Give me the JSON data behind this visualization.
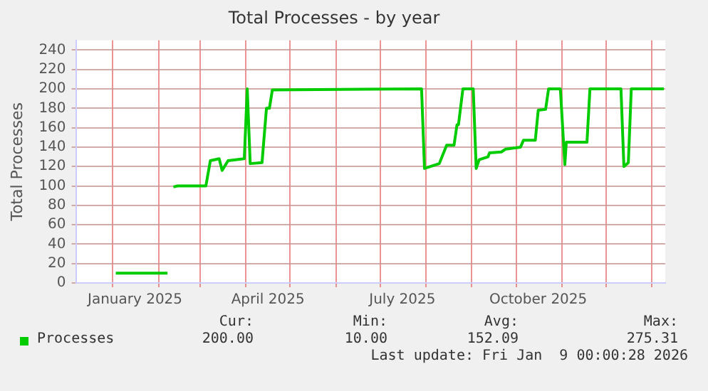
{
  "chart_data": {
    "type": "line",
    "title": "Total Processes - by year",
    "ylabel": "Total Processes",
    "xlim": [
      "2024-12-07",
      "2026-01-10"
    ],
    "xticks": [
      {
        "value": "2025-01-01",
        "label": null
      },
      {
        "value": "2025-01-16",
        "label": "January 2025"
      },
      {
        "value": "2025-02-01",
        "label": null
      },
      {
        "value": "2025-03-01",
        "label": null
      },
      {
        "value": "2025-04-01",
        "label": null
      },
      {
        "value": "2025-04-16",
        "label": "April 2025"
      },
      {
        "value": "2025-05-01",
        "label": null
      },
      {
        "value": "2025-06-01",
        "label": null
      },
      {
        "value": "2025-07-01",
        "label": null
      },
      {
        "value": "2025-07-16",
        "label": "July 2025"
      },
      {
        "value": "2025-08-01",
        "label": null
      },
      {
        "value": "2025-09-01",
        "label": null
      },
      {
        "value": "2025-10-01",
        "label": null
      },
      {
        "value": "2025-10-16",
        "label": "October 2025"
      },
      {
        "value": "2025-11-01",
        "label": null
      },
      {
        "value": "2025-12-01",
        "label": null
      },
      {
        "value": "2026-01-01",
        "label": null
      }
    ],
    "ylim": [
      0,
      250
    ],
    "yticks": [
      0,
      20,
      40,
      60,
      80,
      100,
      120,
      140,
      160,
      180,
      200,
      220,
      240
    ],
    "grid": true,
    "legend": "bottom left",
    "marker": "none",
    "line_style": "solid",
    "series": [
      {
        "name": "Processes",
        "color": "#00cc00",
        "x": [
          "2025-01-03",
          "2025-02-07",
          "2025-02-09",
          "2025-02-11",
          "2025-02-14",
          "2025-03-05",
          "2025-03-08",
          "2025-03-14",
          "2025-03-16",
          "2025-03-20",
          "2025-03-25",
          "2025-03-31",
          "2025-04-02",
          "2025-04-04",
          "2025-04-12",
          "2025-04-15",
          "2025-04-17",
          "2025-04-19",
          "2025-07-29",
          "2025-07-31",
          "2025-08-10",
          "2025-08-15",
          "2025-08-20",
          "2025-08-22",
          "2025-08-23",
          "2025-08-26",
          "2025-09-02",
          "2025-09-04",
          "2025-09-06",
          "2025-09-12",
          "2025-09-13",
          "2025-09-21",
          "2025-09-24",
          "2025-10-04",
          "2025-10-06",
          "2025-10-14",
          "2025-10-16",
          "2025-10-21",
          "2025-10-23",
          "2025-10-31",
          "2025-11-03",
          "2025-11-04",
          "2025-11-18",
          "2025-11-20",
          "2025-12-11",
          "2025-12-13",
          "2025-12-16",
          "2025-12-18",
          "2026-01-09"
        ],
        "values": [
          10,
          10,
          null,
          99,
          100,
          100,
          126,
          128,
          116,
          126,
          127,
          128,
          200,
          123,
          124,
          180,
          180,
          199,
          200,
          118,
          123,
          142,
          142,
          163,
          163,
          200,
          200,
          118,
          127,
          130,
          134,
          135,
          138,
          140,
          147,
          147,
          178,
          179,
          200,
          200,
          122,
          145,
          145,
          200,
          200,
          120,
          124,
          200,
          200
        ]
      }
    ],
    "annotations": [
      "Cur:",
      "Min:",
      "Avg:",
      "Max:",
      "200.00",
      "10.00",
      "152.09",
      "275.31",
      "Last update: Fri Jan  9 00:00:28 2026"
    ]
  }
}
